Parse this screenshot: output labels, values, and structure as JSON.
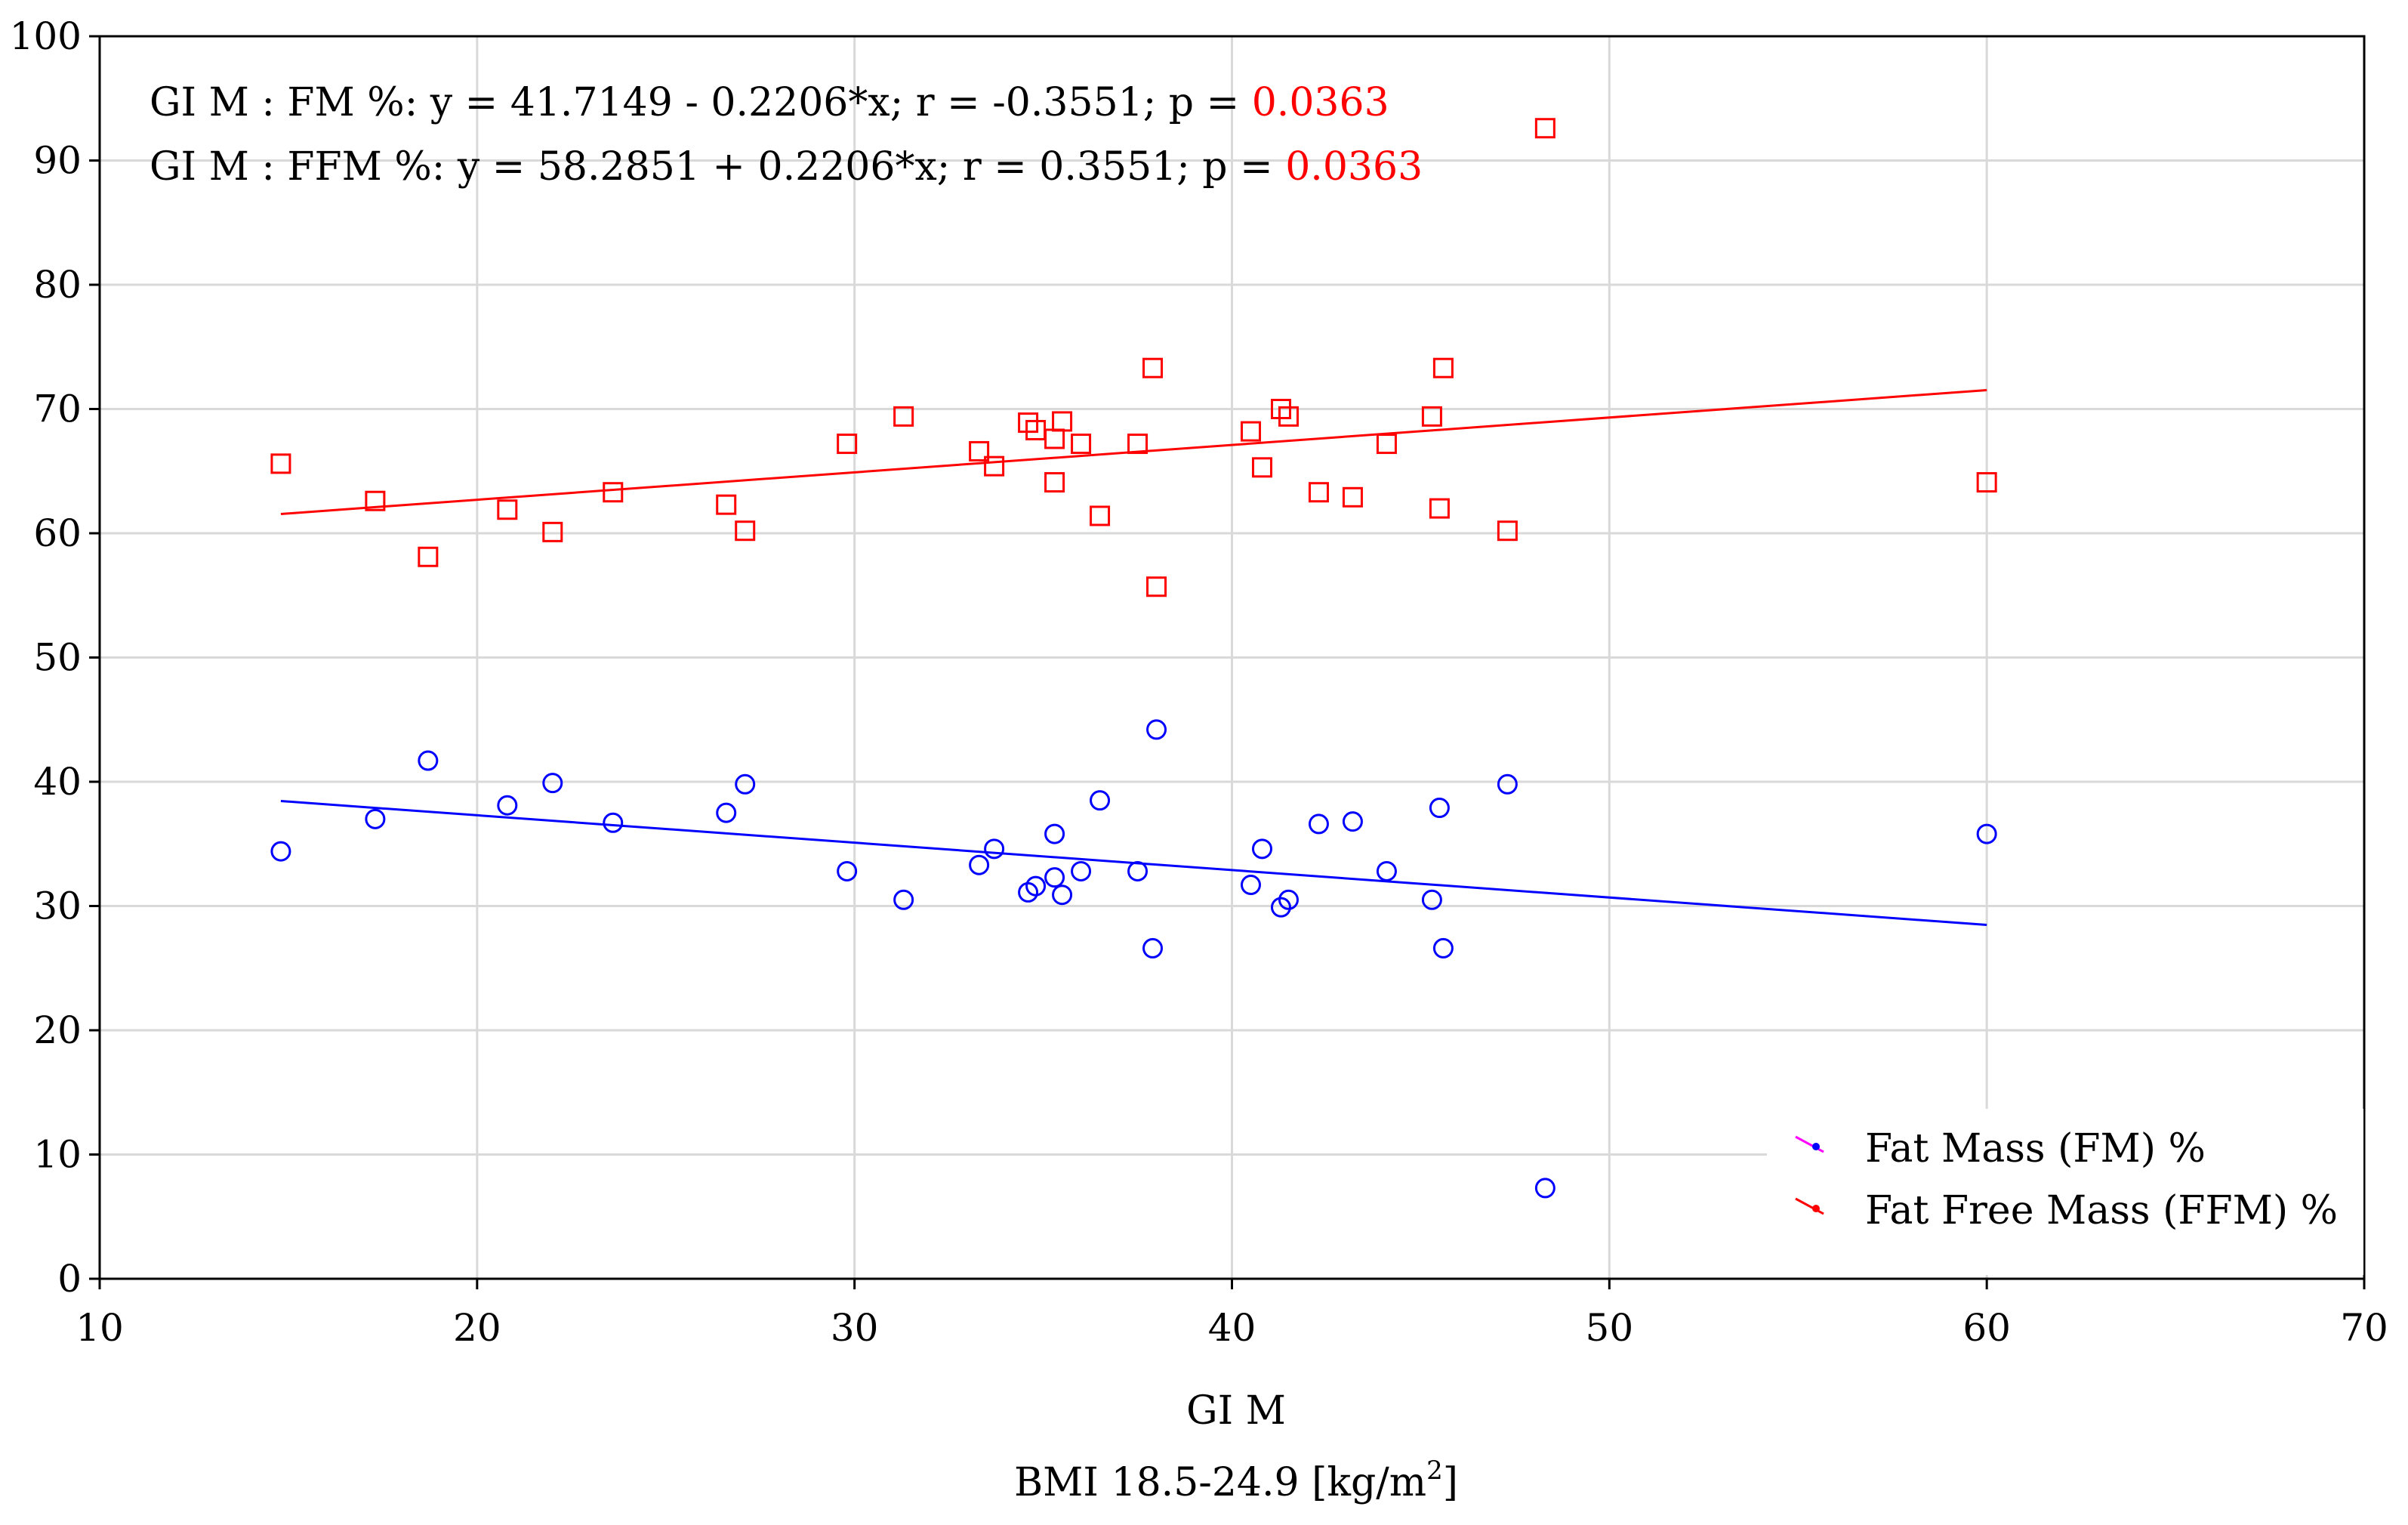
{
  "chart_data": {
    "type": "scatter",
    "xlim": [
      10,
      70
    ],
    "ylim": [
      0,
      100
    ],
    "x_ticks": [
      10,
      20,
      30,
      40,
      50,
      60,
      70
    ],
    "y_ticks": [
      0,
      10,
      20,
      30,
      40,
      50,
      60,
      70,
      80,
      90,
      100
    ],
    "grid": true,
    "xlabel": "GI M",
    "xlabel2": "BMI 18.5-24.9 [kg/m",
    "xlabel2_sup": "2",
    "xlabel2_end": "]",
    "annotations": [
      {
        "text": "GI M : FM %: y = 41.7149 - 0.2206*x; r = -0.3551; p = ",
        "p_value": "0.0363",
        "p_color": "#ff0000"
      },
      {
        "text": "GI M : FFM %: y = 58.2851 + 0.2206*x; r = 0.3551; p = ",
        "p_value": "0.0363",
        "p_color": "#ff0000"
      }
    ],
    "legend_position": "bottom-right",
    "series": [
      {
        "name": "Fat Mass (FM) %",
        "color": "#0000ff",
        "marker": "circle",
        "fit": {
          "intercept": 41.7149,
          "slope": -0.2206
        },
        "points": [
          [
            14.8,
            34.4
          ],
          [
            17.3,
            37.0
          ],
          [
            18.7,
            41.7
          ],
          [
            20.8,
            38.1
          ],
          [
            22.0,
            39.9
          ],
          [
            23.6,
            36.7
          ],
          [
            26.6,
            37.5
          ],
          [
            27.1,
            39.8
          ],
          [
            29.8,
            32.8
          ],
          [
            31.3,
            30.5
          ],
          [
            33.3,
            33.3
          ],
          [
            33.7,
            34.6
          ],
          [
            34.6,
            31.1
          ],
          [
            34.8,
            31.6
          ],
          [
            35.3,
            32.3
          ],
          [
            35.3,
            35.8
          ],
          [
            35.5,
            30.9
          ],
          [
            36.0,
            32.8
          ],
          [
            36.5,
            38.5
          ],
          [
            37.5,
            32.8
          ],
          [
            37.9,
            26.6
          ],
          [
            38.0,
            44.2
          ],
          [
            40.5,
            31.7
          ],
          [
            40.8,
            34.6
          ],
          [
            41.3,
            29.9
          ],
          [
            41.5,
            30.5
          ],
          [
            42.3,
            36.6
          ],
          [
            43.2,
            36.8
          ],
          [
            44.1,
            32.8
          ],
          [
            45.3,
            30.5
          ],
          [
            45.5,
            37.9
          ],
          [
            45.6,
            26.6
          ],
          [
            47.3,
            39.8
          ],
          [
            48.3,
            7.3
          ],
          [
            60.0,
            35.8
          ]
        ]
      },
      {
        "name": "Fat Free Mass (FFM) %",
        "color": "#ff0000",
        "marker": "square",
        "fit": {
          "intercept": 58.2851,
          "slope": 0.2206
        },
        "points": [
          [
            14.8,
            65.6
          ],
          [
            17.3,
            62.6
          ],
          [
            18.7,
            58.1
          ],
          [
            20.8,
            61.9
          ],
          [
            22.0,
            60.1
          ],
          [
            23.6,
            63.3
          ],
          [
            26.6,
            62.3
          ],
          [
            27.1,
            60.2
          ],
          [
            29.8,
            67.2
          ],
          [
            31.3,
            69.4
          ],
          [
            33.3,
            66.6
          ],
          [
            33.7,
            65.4
          ],
          [
            34.6,
            68.9
          ],
          [
            34.8,
            68.3
          ],
          [
            35.3,
            67.6
          ],
          [
            35.3,
            64.1
          ],
          [
            35.5,
            69.0
          ],
          [
            36.0,
            67.2
          ],
          [
            36.5,
            61.4
          ],
          [
            37.5,
            67.2
          ],
          [
            37.9,
            73.3
          ],
          [
            38.0,
            55.7
          ],
          [
            40.5,
            68.2
          ],
          [
            40.8,
            65.3
          ],
          [
            41.3,
            70.0
          ],
          [
            41.5,
            69.4
          ],
          [
            42.3,
            63.3
          ],
          [
            43.2,
            62.9
          ],
          [
            44.1,
            67.2
          ],
          [
            45.3,
            69.4
          ],
          [
            45.5,
            62.0
          ],
          [
            45.6,
            73.3
          ],
          [
            47.3,
            60.2
          ],
          [
            48.3,
            92.6
          ],
          [
            60.0,
            64.1
          ]
        ]
      }
    ]
  }
}
